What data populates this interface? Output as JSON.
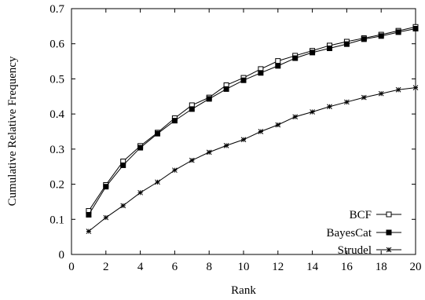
{
  "chart_data": {
    "type": "line",
    "title": "",
    "xlabel": "Rank",
    "ylabel": "Cumulative Relative Frequency",
    "xlim": [
      0,
      20
    ],
    "ylim": [
      0,
      0.7
    ],
    "x_ticks": [
      0,
      2,
      4,
      6,
      8,
      10,
      12,
      14,
      16,
      18,
      20
    ],
    "y_ticks": [
      0,
      0.1,
      0.2,
      0.3,
      0.4,
      0.5,
      0.6,
      0.7
    ],
    "x_tick_labels": [
      "0",
      "2",
      "4",
      "6",
      "8",
      "10",
      "12",
      "14",
      "16",
      "18",
      "20"
    ],
    "y_tick_labels": [
      "0",
      "0.1",
      "0.2",
      "0.3",
      "0.4",
      "0.5",
      "0.6",
      "0.7"
    ],
    "grid": false,
    "legend_position": "bottom-right",
    "x": [
      1,
      2,
      3,
      4,
      5,
      6,
      7,
      8,
      9,
      10,
      11,
      12,
      13,
      14,
      15,
      16,
      17,
      18,
      19,
      20
    ],
    "series": [
      {
        "name": "BCF",
        "marker": "open-square",
        "color": "#000000",
        "values": [
          0.124,
          0.198,
          0.265,
          0.309,
          0.347,
          0.388,
          0.425,
          0.447,
          0.482,
          0.503,
          0.528,
          0.551,
          0.566,
          0.58,
          0.595,
          0.606,
          0.616,
          0.626,
          0.637,
          0.648
        ]
      },
      {
        "name": "BayesCat",
        "marker": "filled-square",
        "color": "#000000",
        "values": [
          0.113,
          0.193,
          0.254,
          0.304,
          0.344,
          0.381,
          0.414,
          0.443,
          0.471,
          0.496,
          0.517,
          0.537,
          0.559,
          0.575,
          0.587,
          0.599,
          0.613,
          0.622,
          0.633,
          0.643
        ]
      },
      {
        "name": "Strudel",
        "marker": "asterisk",
        "color": "#000000",
        "values": [
          0.066,
          0.105,
          0.139,
          0.176,
          0.206,
          0.24,
          0.268,
          0.291,
          0.31,
          0.327,
          0.35,
          0.369,
          0.392,
          0.406,
          0.421,
          0.434,
          0.447,
          0.458,
          0.469,
          0.475
        ]
      }
    ]
  }
}
